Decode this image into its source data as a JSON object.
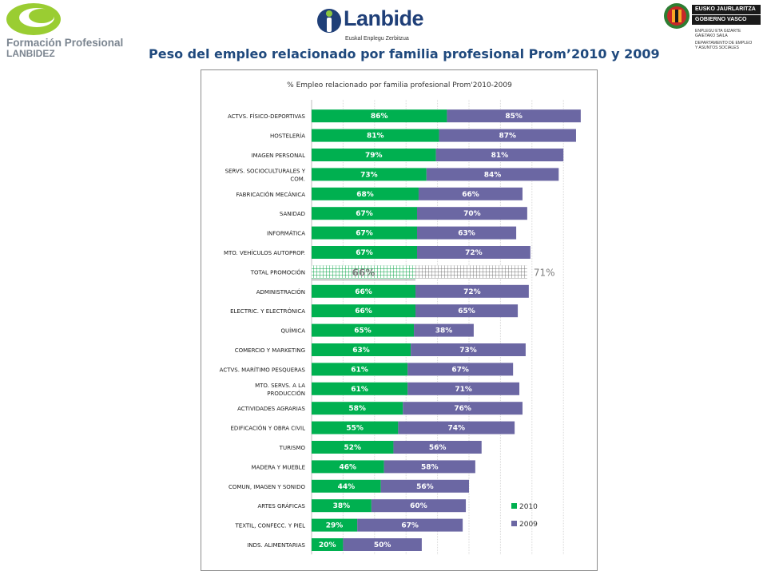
{
  "header": {
    "left_logo": {
      "line1": "Formación Profesional",
      "line2": "LANBIDEZ"
    },
    "center_logo": {
      "name": "Lanbide",
      "subtitle": "Euskal Enplegu Zerbitzua"
    },
    "right_logo": {
      "line1": "EUSKO JAURLARITZA",
      "line2": "GOBIERNO VASCO",
      "line3": "ENPLEGU ETA GIZARTE",
      "line4": "GAIETAKO SAILA",
      "line5": "DEPARTAMENTO DE EMPLEO",
      "line6": "Y ASUNTOS SOCIALES"
    },
    "title": "Peso del empleo relacionado por familia profesional Prom’2010 y 2009"
  },
  "colors": {
    "series_2010": "#00b050",
    "series_2009": "#6b67a3",
    "title": "#1f497d",
    "highlight_label": "#7f7f7f"
  },
  "chart_data": {
    "type": "bar",
    "orientation": "horizontal",
    "stacked": true,
    "title": "% Empleo relacionado por familia profesional Prom'2010-2009",
    "legend_position": "bottom-right",
    "categories": [
      "ACTVS. FÍSICO-DEPORTIVAS",
      "HOSTELERÍA",
      "IMAGEN PERSONAL",
      "SERVS. SOCIOCULTURALES Y COM.",
      "FABRICACIÓN MECÁNICA",
      "SANIDAD",
      "INFORMÁTICA",
      "MTO. VEHÍCULOS AUTOPROP.",
      "TOTAL PROMOCIÓN",
      "ADMINISTRACIÓN",
      "ELECTRIC. Y ELECTRÓNICA",
      "QUÍMICA",
      "COMERCIO Y MARKETING",
      "ACTVS. MARÍTIMO PESQUERAS",
      "MTO. SERVS. A LA PRODUCCIÓN",
      "ACTIVIDADES AGRARIAS",
      "EDIFICACIÓN Y OBRA CIVIL",
      "TURISMO",
      "MADERA Y MUEBLE",
      "COMUN, IMAGEN Y SONIDO",
      "ARTES GRÁFICAS",
      "TEXTIL, CONFECC. Y PIEL",
      "INDS. ALIMENTARIAS"
    ],
    "highlight_category": "TOTAL PROMOCIÓN",
    "series": [
      {
        "name": "2010",
        "color": "#00b050",
        "values": [
          86,
          81,
          79,
          73,
          68,
          67,
          67,
          67,
          66,
          66,
          66,
          65,
          63,
          61,
          61,
          58,
          55,
          52,
          46,
          44,
          38,
          29,
          20
        ],
        "labels": [
          "86%",
          "81%",
          "79%",
          "73%",
          "68%",
          "67%",
          "67%",
          "67%",
          "66%",
          "66%",
          "66%",
          "65%",
          "63%",
          "61%",
          "61%",
          "58%",
          "55%",
          "52%",
          "46%",
          "44%",
          "38%",
          "29%",
          "20%"
        ]
      },
      {
        "name": "2009",
        "color": "#6b67a3",
        "values": [
          85,
          87,
          81,
          84,
          66,
          70,
          63,
          72,
          71,
          72,
          65,
          38,
          73,
          67,
          71,
          76,
          74,
          56,
          58,
          56,
          60,
          67,
          50
        ],
        "labels": [
          "85%",
          "87%",
          "81%",
          "84%",
          "66%",
          "70%",
          "63%",
          "72%",
          "71%",
          "72%",
          "65%",
          "38%",
          "73%",
          "67%",
          "71%",
          "76%",
          "74%",
          "56%",
          "58%",
          "56%",
          "60%",
          "67%",
          "50%"
        ]
      }
    ]
  }
}
